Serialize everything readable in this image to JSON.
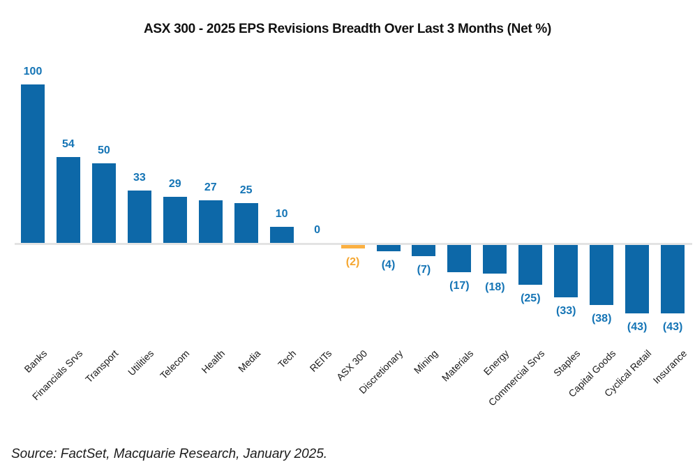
{
  "page": {
    "source": "Source: FactSet, Macquarie Research, January 2025."
  },
  "chart_data": {
    "type": "bar",
    "title": "ASX 300 - 2025 EPS Revisions Breadth Over Last 3 Months (Net %)",
    "categories": [
      "Banks",
      "Financials Srvs",
      "Transport",
      "Utilities",
      "Telecom",
      "Health",
      "Media",
      "Tech",
      "REITs",
      "ASX 300",
      "Discretionary",
      "Mining",
      "Materials",
      "Energy",
      "Commercial Srvs",
      "Staples",
      "Capital Goods",
      "Cyclical Retail",
      "Insurance"
    ],
    "values": [
      100,
      54,
      50,
      33,
      29,
      27,
      25,
      10,
      0,
      -2,
      -4,
      -7,
      -17,
      -18,
      -25,
      -33,
      -38,
      -43,
      -43
    ],
    "value_labels": [
      "100",
      "54",
      "50",
      "33",
      "29",
      "27",
      "25",
      "10",
      "0",
      "(2)",
      "(4)",
      "(7)",
      "(17)",
      "(18)",
      "(25)",
      "(33)",
      "(38)",
      "(43)",
      "(43)"
    ],
    "negative_format": "parentheses",
    "highlight_category": "ASX 300",
    "bar_color": "#0d68a8",
    "highlight_color": "#fbb042",
    "label_color": "#1474b5",
    "highlight_label_color": "#f5a62f",
    "xlabel": "",
    "ylabel": "",
    "ylim": [
      -50,
      105
    ],
    "grid": false,
    "legend": false,
    "x_tick_rotation_deg": 45
  }
}
